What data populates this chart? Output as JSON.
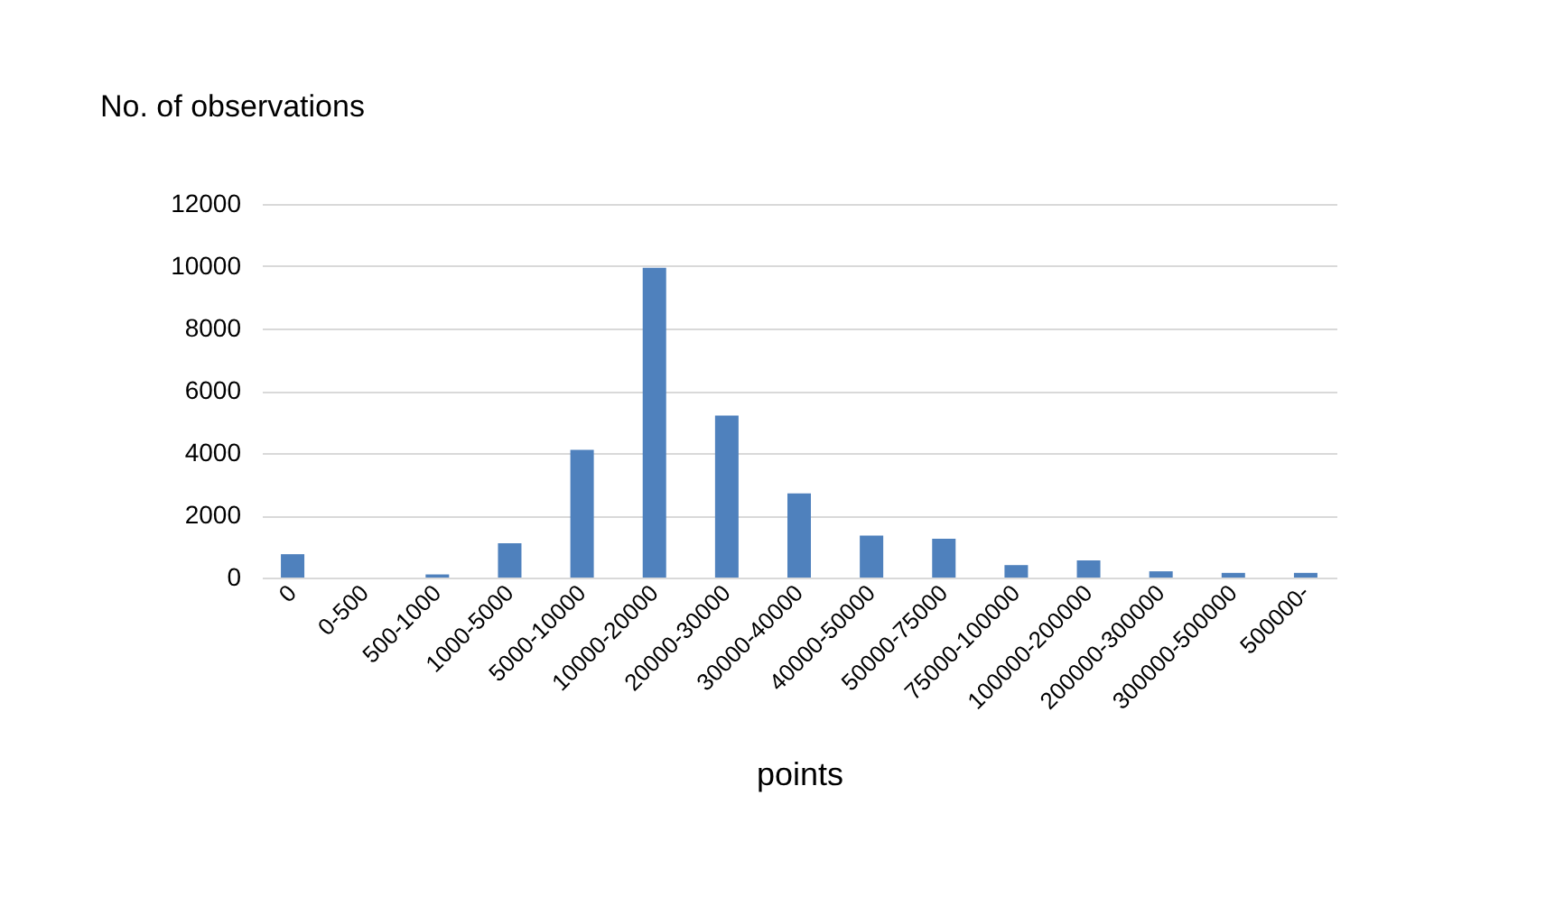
{
  "chart_data": {
    "type": "bar",
    "xlabel": "points",
    "ylabel": "No. of observations",
    "categories": [
      "0",
      "0-500",
      "500-1000",
      "1000-5000",
      "5000-10000",
      "10000-20000",
      "20000-30000",
      "30000-40000",
      "40000-50000",
      "50000-75000",
      "75000-100000",
      "100000-200000",
      "200000-300000",
      "300000-500000",
      "500000-"
    ],
    "values": [
      750,
      0,
      100,
      1100,
      4100,
      9950,
      5200,
      2700,
      1350,
      1250,
      400,
      550,
      200,
      150,
      150
    ],
    "color": "#4f81bd",
    "ylim": [
      0,
      12000
    ],
    "yticks": [
      0,
      2000,
      4000,
      6000,
      8000,
      10000,
      12000
    ],
    "grid": "y"
  }
}
